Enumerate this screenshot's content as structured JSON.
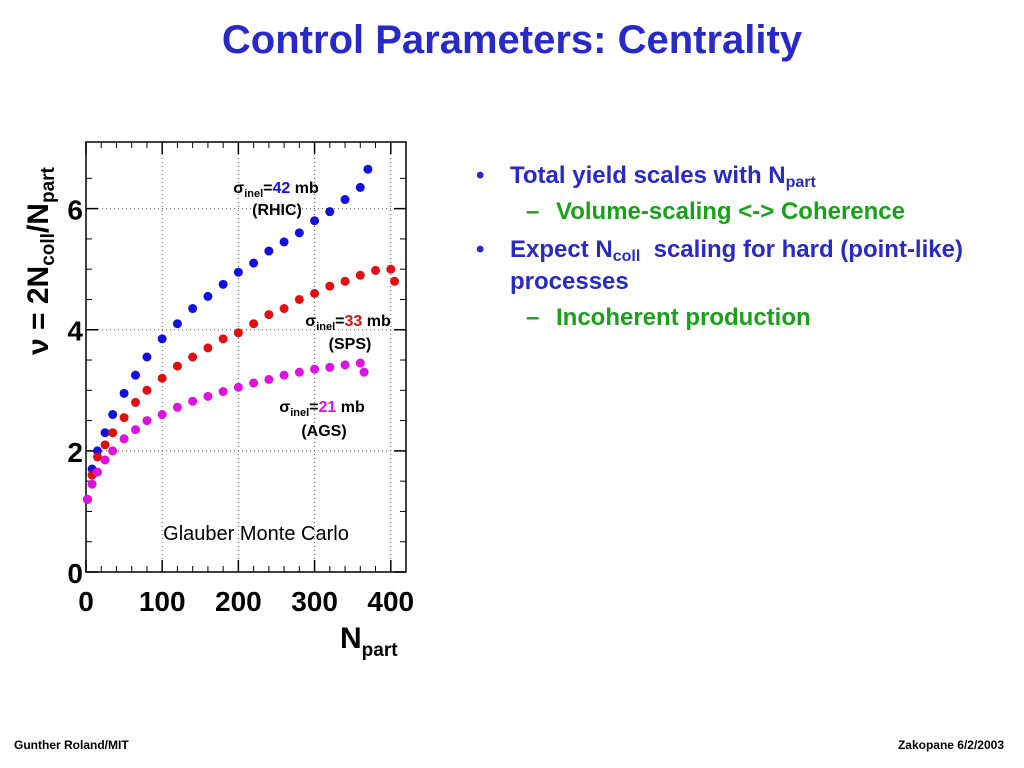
{
  "slide": {
    "title": "Control Parameters: Centrality",
    "footer_left": "Gunther Roland/MIT",
    "footer_right": "Zakopane 6/2/2003"
  },
  "bullets": [
    {
      "text": "Total yield scales with N",
      "sub": "part",
      "tail": "",
      "color": "#2929c8"
    },
    {
      "text": "Volume-scaling <-> Coherence",
      "sub": "",
      "tail": "",
      "color": "#1aa01a",
      "level": 2
    },
    {
      "text": "Expect N",
      "sub": "coll",
      "tail": "  scaling for hard (point-like) processes",
      "color": "#2929c8"
    },
    {
      "text": "Incoherent production",
      "sub": "",
      "tail": "",
      "color": "#1aa01a",
      "level": 2
    }
  ],
  "chart_data": {
    "type": "scatter",
    "title": "",
    "xlabel": "N",
    "xlabel_sub": "part",
    "ylabel_prefix": "ν = 2N",
    "ylabel_sub1": "coll",
    "ylabel_mid": "/N",
    "ylabel_sub2": "part",
    "xlim": [
      0,
      420
    ],
    "ylim": [
      0,
      7.1
    ],
    "xticks": [
      "0",
      "100",
      "200",
      "300",
      "400"
    ],
    "xtick_values": [
      0,
      100,
      200,
      300,
      400
    ],
    "yticks": [
      "0",
      "2",
      "4",
      "6"
    ],
    "ytick_values": [
      0,
      2,
      4,
      6
    ],
    "annotation": "Glauber Monte Carlo",
    "series": [
      {
        "sigma_symbol": "σ",
        "sigma_sub": "inel",
        "eq": "=",
        "value": "42",
        "unit": " mb",
        "label": "(RHIC)",
        "color": "#1010e0",
        "value_color": "#1010e0",
        "x": [
          2,
          8,
          15,
          25,
          35,
          50,
          65,
          80,
          100,
          120,
          140,
          160,
          180,
          200,
          220,
          240,
          260,
          280,
          300,
          320,
          340,
          360,
          370
        ],
        "y": [
          1.2,
          1.7,
          2.0,
          2.3,
          2.6,
          2.95,
          3.25,
          3.55,
          3.85,
          4.1,
          4.35,
          4.55,
          4.75,
          4.95,
          5.1,
          5.3,
          5.45,
          5.6,
          5.8,
          5.95,
          6.15,
          6.35,
          6.65
        ]
      },
      {
        "sigma_symbol": "σ",
        "sigma_sub": "inel",
        "eq": "=",
        "value": "33",
        "unit": " mb",
        "label": "(SPS)",
        "color": "#e01010",
        "value_color": "#e01010",
        "x": [
          2,
          8,
          15,
          25,
          35,
          50,
          65,
          80,
          100,
          120,
          140,
          160,
          180,
          200,
          220,
          240,
          260,
          280,
          300,
          320,
          340,
          360,
          380,
          400,
          405
        ],
        "y": [
          1.2,
          1.6,
          1.9,
          2.1,
          2.3,
          2.55,
          2.8,
          3.0,
          3.2,
          3.4,
          3.55,
          3.7,
          3.85,
          3.95,
          4.1,
          4.25,
          4.35,
          4.5,
          4.6,
          4.72,
          4.8,
          4.9,
          4.98,
          5.0,
          4.8
        ]
      },
      {
        "sigma_symbol": "σ",
        "sigma_sub": "inel",
        "eq": "=",
        "value": "21",
        "unit": " mb",
        "label": "(AGS)",
        "color": "#e010e0",
        "value_color": "#e010e0",
        "x": [
          2,
          8,
          15,
          25,
          35,
          50,
          65,
          80,
          100,
          120,
          140,
          160,
          180,
          200,
          220,
          240,
          260,
          280,
          300,
          320,
          340,
          360,
          365
        ],
        "y": [
          1.2,
          1.45,
          1.65,
          1.85,
          2.0,
          2.2,
          2.35,
          2.5,
          2.6,
          2.72,
          2.82,
          2.9,
          2.98,
          3.05,
          3.12,
          3.18,
          3.25,
          3.3,
          3.35,
          3.38,
          3.42,
          3.45,
          3.3
        ]
      }
    ]
  }
}
